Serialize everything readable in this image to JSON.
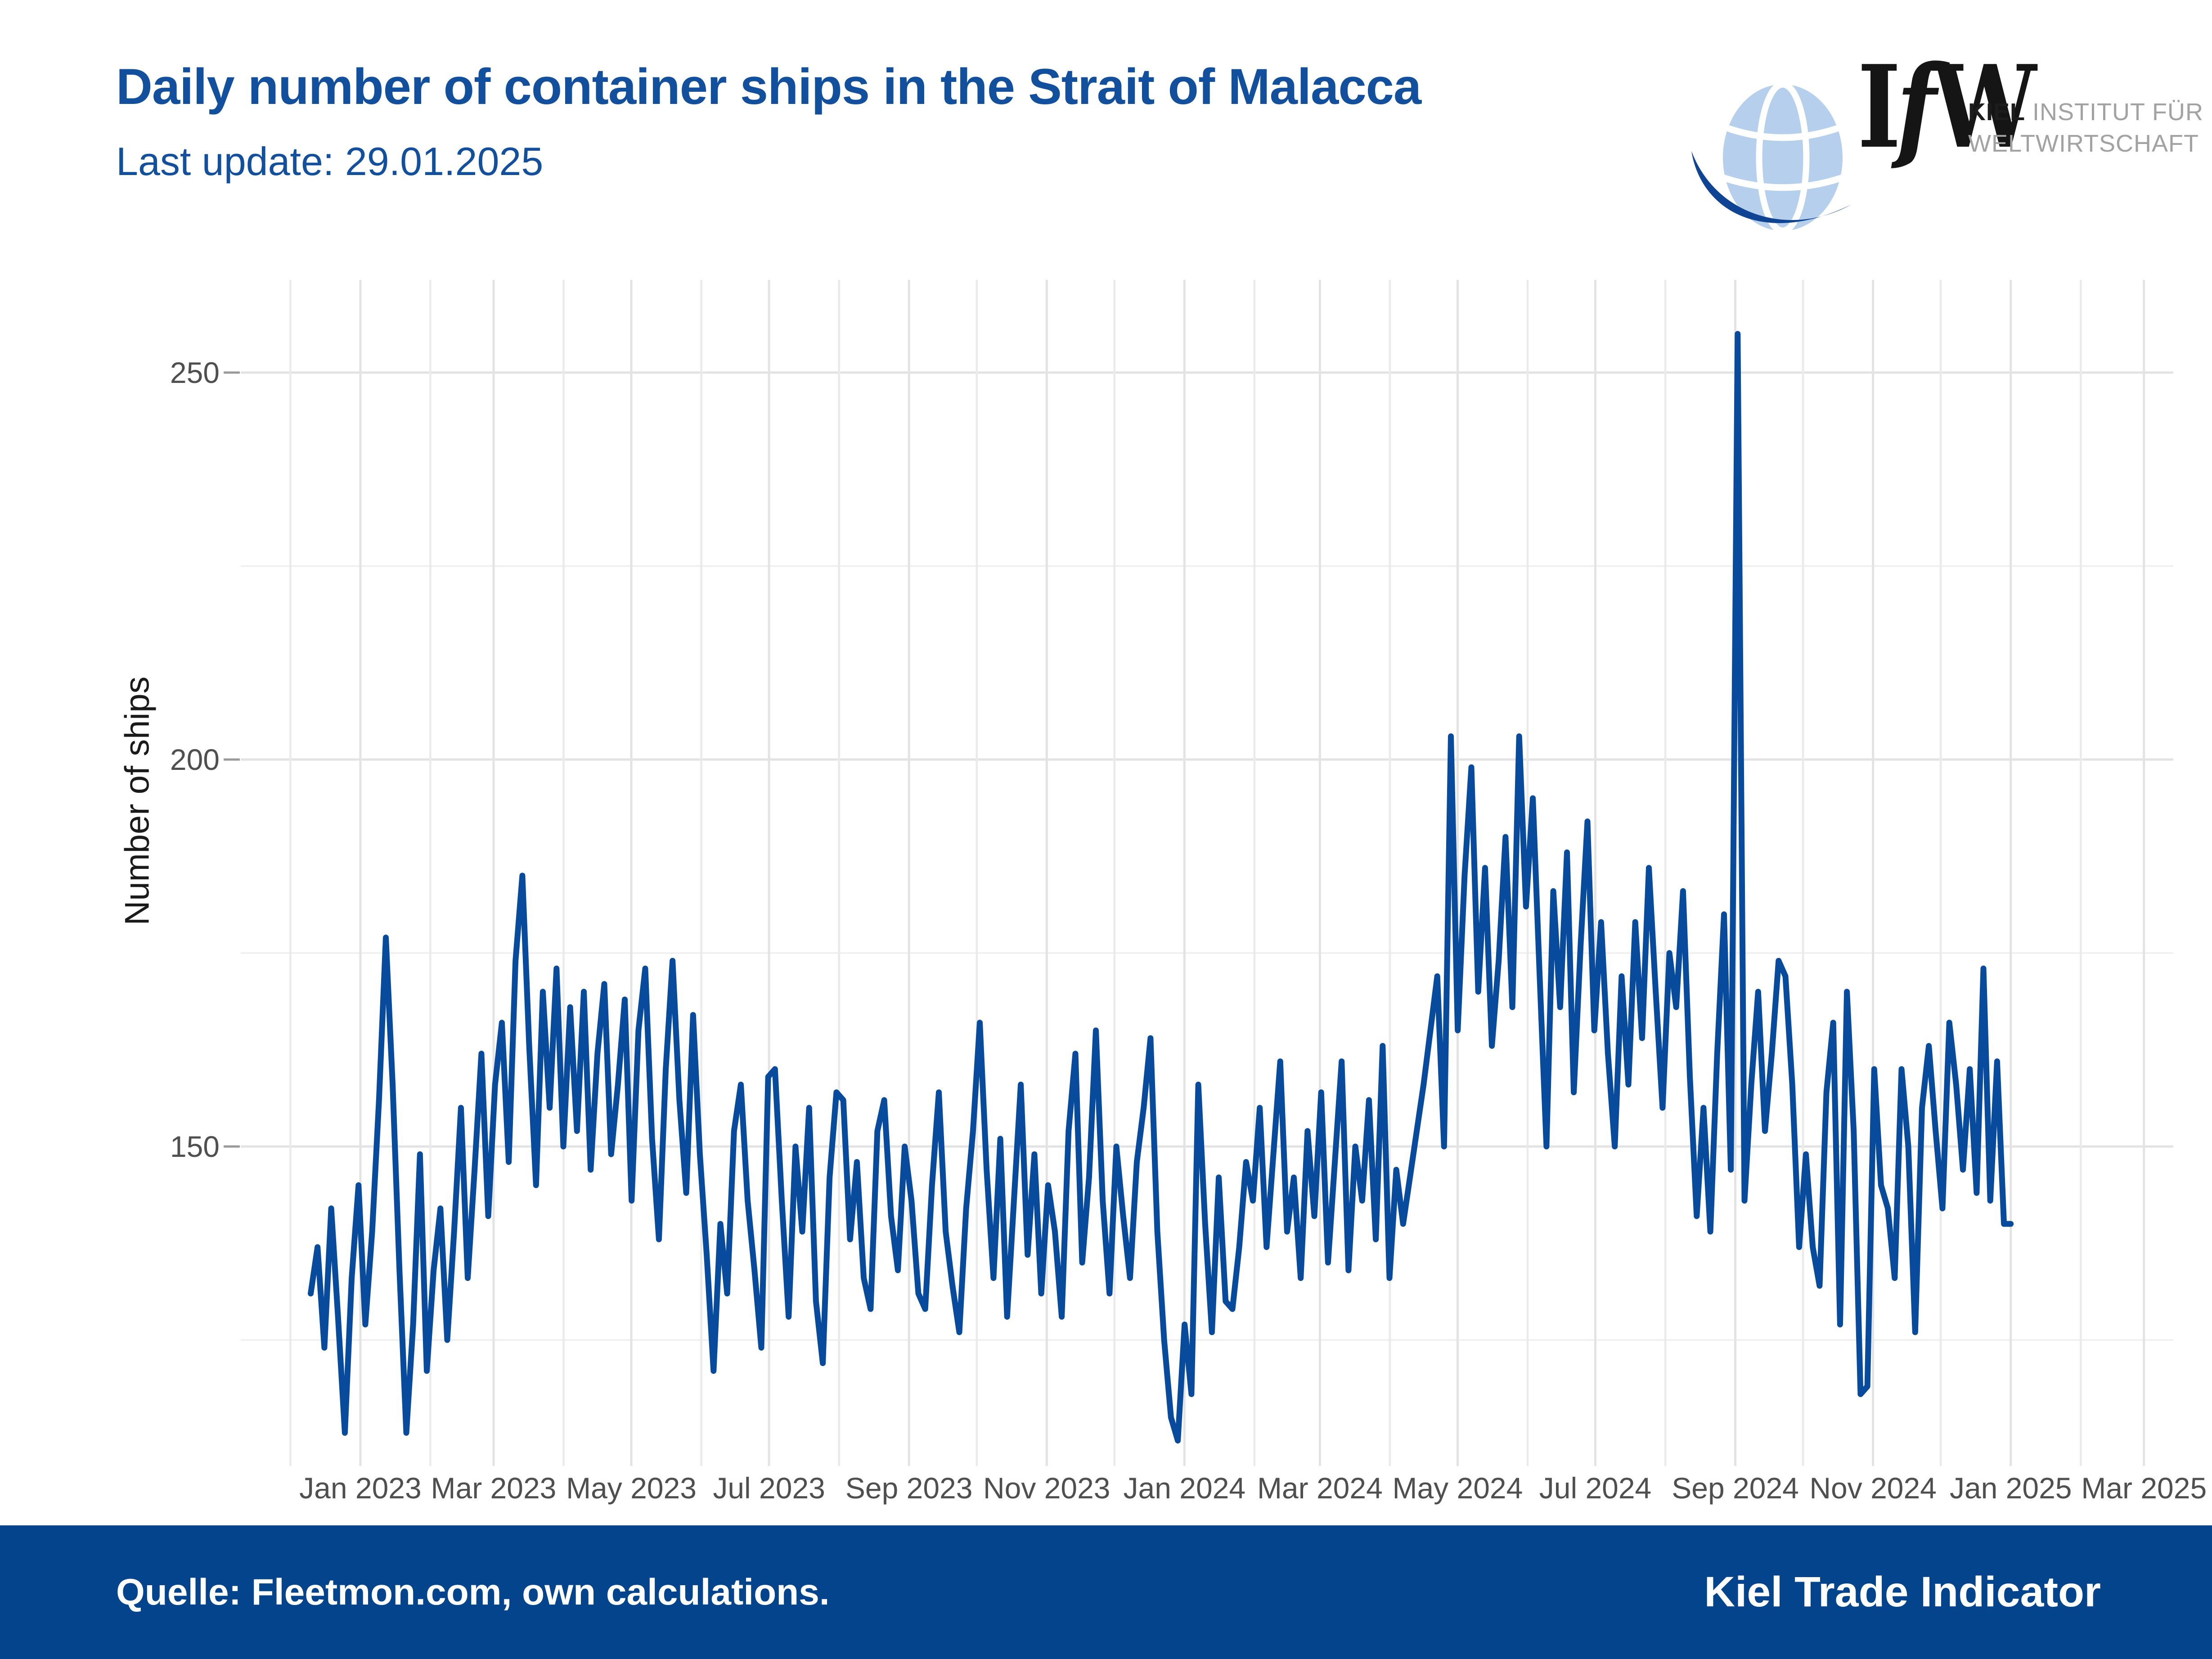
{
  "header": {
    "title": "Daily number of container ships in the Strait of Malacca",
    "subtitle": "Last update: 29.01.2025"
  },
  "logo": {
    "m1": "I",
    "m2": "f",
    "m3": "W",
    "org_bold": "KIEL",
    "org_line1": "INSTITUT FÜR",
    "org_line2": "WELTWIRTSCHAFT",
    "globe_icon": "globe-with-swoosh"
  },
  "footer": {
    "source": "Quelle: Fleetmon.com, own calculations.",
    "brand": "Kiel Trade Indicator"
  },
  "colors": {
    "accent_blue": "#12509e",
    "line_blue": "#084a9b",
    "footer_blue": "#04448d",
    "grid_major": "#e3e3e3",
    "grid_minor": "#f0f0f0",
    "axis_text": "#4f4f4f",
    "tick_mark": "#9a9a9a",
    "globe_light_blue": "#b5cfec",
    "swoosh_blue": "#0f4494"
  },
  "chart_data": {
    "type": "line",
    "title": "Daily number of container ships in the Strait of Malacca",
    "xlabel": "",
    "ylabel": "Number of ships",
    "legend": "none",
    "grid": "monthly vertical gridlines; horizontal gridlines every 25 ships (minor) / 50 ships (major, labeled)",
    "x_axis_domain": [
      "2022-11-09",
      "2025-03-14"
    ],
    "x_ticks": [
      "Jan 2023",
      "Mar 2023",
      "May 2023",
      "Jul 2023",
      "Sep 2023",
      "Nov 2023",
      "Jan 2024",
      "Mar 2024",
      "May 2024",
      "Jul 2024",
      "Sep 2024",
      "Nov 2024",
      "Jan 2025",
      "Mar 2025"
    ],
    "y_ticks": [
      150,
      200,
      250
    ],
    "y_minor_gridlines": [
      125,
      175,
      225
    ],
    "ylim": [
      109,
      262
    ],
    "x_start_date": "2022-12-10",
    "x_end_date": "2025-01-01",
    "sampling_note": "underlying series is daily; values below reconstructed from pixels at ~3-day resolution",
    "annotations": {
      "max_spike": "one-day spike to ~255 ships in early September 2024",
      "lows": "lows of ~112-118 ships around late Dec 2023 / early Jan 2024 and late Oct 2024",
      "high_band": "elevated level ~160-203 ships May-August 2024",
      "last_value": "~140 ships at end of series"
    },
    "series": [
      {
        "name": "Container ships per day",
        "values": [
          131,
          137,
          124,
          142,
          128,
          113,
          133,
          145,
          127,
          139,
          156,
          177,
          158,
          134,
          113,
          127,
          149,
          121,
          134,
          142,
          125,
          139,
          155,
          133,
          147,
          162,
          141,
          158,
          166,
          148,
          174,
          185,
          163,
          145,
          170,
          155,
          173,
          150,
          168,
          152,
          170,
          147,
          162,
          171,
          149,
          158,
          169,
          143,
          165,
          173,
          151,
          138,
          160,
          174,
          156,
          144,
          167,
          149,
          136,
          121,
          140,
          131,
          152,
          158,
          143,
          134,
          124,
          159,
          160,
          143,
          128,
          150,
          139,
          155,
          130,
          122,
          146,
          157,
          156,
          138,
          148,
          133,
          129,
          152,
          156,
          141,
          134,
          150,
          143,
          131,
          129,
          145,
          157,
          139,
          132,
          126,
          142,
          152,
          166,
          147,
          133,
          151,
          128,
          143,
          158,
          136,
          149,
          131,
          145,
          139,
          128,
          152,
          162,
          135,
          146,
          165,
          143,
          131,
          150,
          141,
          133,
          148,
          155,
          164,
          139,
          125,
          115,
          112,
          127,
          118,
          158,
          140,
          126,
          146,
          130,
          129,
          137,
          148,
          143,
          155,
          137,
          149,
          161,
          139,
          146,
          133,
          152,
          141,
          157,
          135,
          148,
          161,
          134,
          150,
          143,
          156,
          138,
          163,
          133,
          147,
          140,
          146,
          152,
          158,
          165,
          172,
          150,
          203,
          165,
          185,
          199,
          170,
          186,
          163,
          174,
          190,
          168,
          203,
          181,
          195,
          172,
          150,
          183,
          168,
          188,
          157,
          176,
          192,
          165,
          179,
          162,
          150,
          172,
          158,
          179,
          164,
          186,
          170,
          155,
          175,
          168,
          183,
          159,
          141,
          155,
          139,
          162,
          180,
          147,
          255,
          143,
          158,
          170,
          152,
          162,
          174,
          172,
          158,
          137,
          149,
          137,
          132,
          157,
          166,
          127,
          170,
          152,
          118,
          119,
          160,
          145,
          142,
          133,
          160,
          150,
          126,
          155,
          163,
          152,
          142,
          166,
          158,
          147,
          160,
          144,
          173,
          143,
          161,
          140,
          140
        ]
      }
    ]
  }
}
